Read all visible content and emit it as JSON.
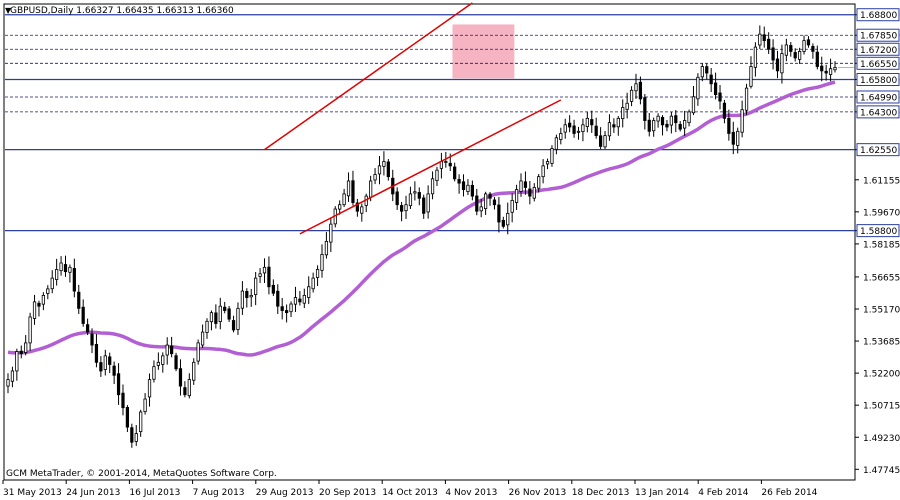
{
  "header": {
    "symbol_line": "GBPUSD,Daily  1.66327 1.66435 1.66313 1.66360",
    "copyright": "GCM MetaTrader, © 2001-2014, MetaQuotes Software Corp."
  },
  "colors": {
    "bull": "#000000",
    "bear": "#000000",
    "ma": "#b35fd4",
    "channel": "#e00000",
    "level_solid": "#2a3fa0",
    "level_dashed": "#1a1a66",
    "zone": "#f4a7b9",
    "price_tag_bg": "#ffffff"
  },
  "chart_data": {
    "type": "candlestick",
    "title": "",
    "ylim": [
      1.4725,
      1.6925
    ],
    "x_labels": [
      "31 May 2013",
      "24 Jun 2013",
      "16 Jul 2013",
      "7 Aug 2013",
      "29 Aug 2013",
      "20 Sep 2013",
      "14 Oct 2013",
      "4 Nov 2013",
      "26 Nov 2013",
      "18 Dec 2013",
      "13 Jan 2014",
      "4 Feb 2014",
      "26 Feb 2014"
    ],
    "y_ticks": [
      "1.68800",
      "1.67850",
      "1.67200",
      "1.66550",
      "1.65800",
      "1.64990",
      "1.64300",
      "1.62550",
      "1.61155",
      "1.59670",
      "1.58800",
      "1.58185",
      "1.56655",
      "1.55170",
      "1.53685",
      "1.52200",
      "1.50715",
      "1.49230",
      "1.47745"
    ],
    "y_tick_values": [
      1.688,
      1.6785,
      1.672,
      1.6655,
      1.658,
      1.6499,
      1.643,
      1.6255,
      1.61155,
      1.5967,
      1.588,
      1.58185,
      1.56655,
      1.5517,
      1.53685,
      1.522,
      1.50715,
      1.4923,
      1.47745
    ],
    "levels": [
      {
        "value": 1.688,
        "style": "solid",
        "label": "1.68800"
      },
      {
        "value": 1.6785,
        "style": "dashed",
        "label": "1.67850"
      },
      {
        "value": 1.672,
        "style": "dashed",
        "label": "1.67200"
      },
      {
        "value": 1.6655,
        "style": "dashed",
        "label": "1.66550"
      },
      {
        "value": 1.658,
        "style": "solid",
        "label": "1.65800"
      },
      {
        "value": 1.6499,
        "style": "dashed",
        "label": "1.64990"
      },
      {
        "value": 1.643,
        "style": "dashed",
        "label": "1.64300"
      },
      {
        "value": 1.6255,
        "style": "solid",
        "label": "1.62550"
      },
      {
        "value": 1.588,
        "style": "solid",
        "label": "1.58800"
      }
    ],
    "current_price": 1.6636,
    "channel": {
      "upper": [
        [
          58,
          1.6255
        ],
        [
          105,
          1.6935
        ]
      ],
      "lower": [
        [
          66,
          1.5865
        ],
        [
          125,
          1.6485
        ]
      ]
    },
    "zone": {
      "x_start": 100.5,
      "x_end": 114.5,
      "y_low": 1.6585,
      "y_high": 1.6835
    },
    "closes": [
      1.519,
      1.523,
      1.532,
      1.531,
      1.536,
      1.548,
      1.555,
      1.553,
      1.558,
      1.561,
      1.566,
      1.57,
      1.573,
      1.569,
      1.571,
      1.56,
      1.552,
      1.545,
      1.541,
      1.535,
      1.527,
      1.523,
      1.53,
      1.526,
      1.521,
      1.512,
      1.506,
      1.497,
      1.49,
      1.494,
      1.504,
      1.51,
      1.519,
      1.525,
      1.527,
      1.53,
      1.535,
      1.531,
      1.524,
      1.516,
      1.512,
      1.519,
      1.527,
      1.536,
      1.541,
      1.546,
      1.55,
      1.545,
      1.553,
      1.551,
      1.547,
      1.542,
      1.552,
      1.56,
      1.557,
      1.558,
      1.566,
      1.568,
      1.571,
      1.562,
      1.559,
      1.553,
      1.551,
      1.55,
      1.554,
      1.557,
      1.555,
      1.558,
      1.562,
      1.566,
      1.57,
      1.577,
      1.583,
      1.591,
      1.598,
      1.6,
      1.605,
      1.611,
      1.601,
      1.597,
      1.599,
      1.604,
      1.611,
      1.614,
      1.618,
      1.62,
      1.613,
      1.605,
      1.6,
      1.597,
      1.6,
      1.605,
      1.606,
      1.603,
      1.596,
      1.605,
      1.612,
      1.616,
      1.62,
      1.62,
      1.618,
      1.612,
      1.61,
      1.607,
      1.609,
      1.604,
      1.597,
      1.599,
      1.605,
      1.603,
      1.6,
      1.592,
      1.59,
      1.596,
      1.602,
      1.607,
      1.611,
      1.608,
      1.604,
      1.608,
      1.613,
      1.618,
      1.62,
      1.626,
      1.631,
      1.633,
      1.637,
      1.636,
      1.633,
      1.634,
      1.637,
      1.64,
      1.637,
      1.632,
      1.627,
      1.632,
      1.638,
      1.636,
      1.64,
      1.645,
      1.647,
      1.653,
      1.656,
      1.649,
      1.639,
      1.634,
      1.639,
      1.641,
      1.637,
      1.636,
      1.641,
      1.638,
      1.635,
      1.639,
      1.643,
      1.65,
      1.659,
      1.664,
      1.661,
      1.656,
      1.651,
      1.648,
      1.64,
      1.633,
      1.628,
      1.634,
      1.644,
      1.654,
      1.664,
      1.673,
      1.679,
      1.676,
      1.672,
      1.667,
      1.662,
      1.67,
      1.674,
      1.671,
      1.668,
      1.671,
      1.676,
      1.674,
      1.671,
      1.664,
      1.662,
      1.661,
      1.663,
      1.6636
    ]
  }
}
